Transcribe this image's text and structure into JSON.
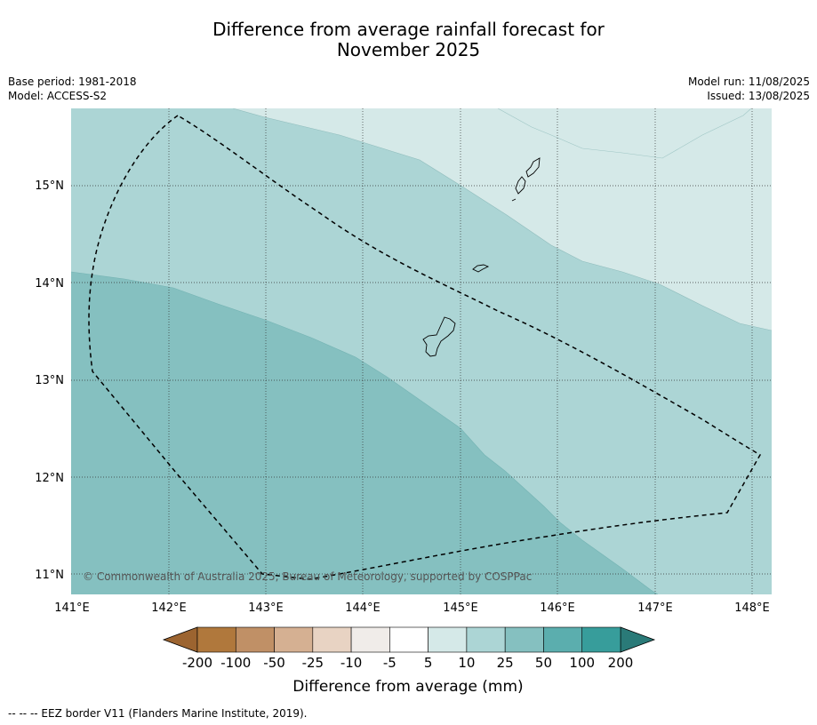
{
  "title": {
    "line1": "Difference from average rainfall forecast for",
    "line2": "November 2025"
  },
  "meta": {
    "base_period": "Base period: 1981-2018",
    "model": "Model: ACCESS-S2",
    "model_run": "Model run: 11/08/2025",
    "issued": "Issued: 13/08/2025"
  },
  "map": {
    "lat_labels": [
      "15°N",
      "14°N",
      "13°N",
      "12°N",
      "11°N"
    ],
    "lon_labels": [
      "141°E",
      "142°E",
      "143°E",
      "144°E",
      "145°E",
      "146°E",
      "147°E",
      "148°E"
    ],
    "copyright": "© Commonwealth of Australia 2025, Bureau of Meteorology, supported by COSPPac",
    "zones": [
      {
        "category": "5 to 10",
        "color": "#d5e9e8"
      },
      {
        "category": "10 to 25",
        "color": "#acd5d5"
      },
      {
        "category": "25 to 50",
        "color": "#85c0c0"
      }
    ],
    "eez_line": "dashed"
  },
  "colorbar": {
    "ticks": [
      "-200",
      "-100",
      "-50",
      "-25",
      "-10",
      "-5",
      "5",
      "10",
      "25",
      "50",
      "100",
      "200"
    ],
    "colors": [
      "#9c6430",
      "#b0783c",
      "#c09066",
      "#d5b092",
      "#e8d3c3",
      "#f0ece9",
      "#ffffff",
      "#d5e9e8",
      "#acd5d5",
      "#85c0c0",
      "#5baeae",
      "#379d9b",
      "#2a7a78"
    ],
    "label": "Difference from average (mm)"
  },
  "footnote": "--  --  -- EEZ border V11 (Flanders Marine Institute, 2019)."
}
